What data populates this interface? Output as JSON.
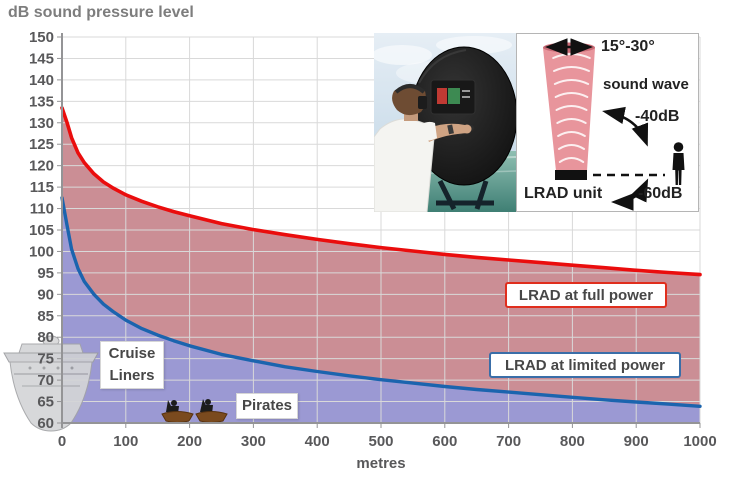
{
  "chart_data": {
    "type": "line",
    "title": "dB sound pressure level",
    "xlabel": "metres",
    "ylabel": "dB sound pressure level",
    "xlim": [
      0,
      1000
    ],
    "ylim": [
      60,
      150
    ],
    "grid": true,
    "legend_position": "inside-right",
    "xticks": [
      0,
      100,
      200,
      300,
      400,
      500,
      600,
      700,
      800,
      900,
      1000
    ],
    "yticks": [
      60,
      65,
      70,
      75,
      80,
      85,
      90,
      95,
      100,
      105,
      110,
      115,
      120,
      125,
      130,
      135,
      140,
      145,
      150
    ],
    "series": [
      {
        "name": "LRAD at full power",
        "color": "#ea0d0d",
        "fill": "#cb8e95",
        "points": [
          [
            0,
            133.5
          ],
          [
            8,
            130
          ],
          [
            15,
            126.5
          ],
          [
            25,
            123
          ],
          [
            35,
            120.7
          ],
          [
            50,
            118.1
          ],
          [
            65,
            116.2
          ],
          [
            80,
            114.8
          ],
          [
            100,
            113.2
          ],
          [
            125,
            111.7
          ],
          [
            150,
            110.4
          ],
          [
            175,
            109.3
          ],
          [
            200,
            108.3
          ],
          [
            250,
            106.5
          ],
          [
            300,
            105.1
          ],
          [
            350,
            103.9
          ],
          [
            400,
            102.8
          ],
          [
            450,
            101.8
          ],
          [
            500,
            100.9
          ],
          [
            550,
            100.1
          ],
          [
            600,
            99.3
          ],
          [
            650,
            98.6
          ],
          [
            700,
            98.0
          ],
          [
            750,
            97.4
          ],
          [
            800,
            96.8
          ],
          [
            850,
            96.2
          ],
          [
            900,
            95.6
          ],
          [
            950,
            95.1
          ],
          [
            1000,
            94.6
          ]
        ]
      },
      {
        "name": "LRAD at limited power",
        "color": "#1b64ae",
        "fill": "#9b99d3",
        "points": [
          [
            0,
            112.5
          ],
          [
            8,
            106
          ],
          [
            15,
            100.5
          ],
          [
            25,
            96
          ],
          [
            35,
            93
          ],
          [
            50,
            90
          ],
          [
            65,
            87.7
          ],
          [
            80,
            86
          ],
          [
            100,
            84
          ],
          [
            125,
            82
          ],
          [
            150,
            80.5
          ],
          [
            175,
            79.2
          ],
          [
            200,
            78
          ],
          [
            250,
            76
          ],
          [
            300,
            74.5
          ],
          [
            350,
            73.1
          ],
          [
            400,
            72
          ],
          [
            450,
            71
          ],
          [
            500,
            70.1
          ],
          [
            550,
            69.3
          ],
          [
            600,
            68.5
          ],
          [
            650,
            67.8
          ],
          [
            700,
            67.2
          ],
          [
            750,
            66.6
          ],
          [
            800,
            66
          ],
          [
            850,
            65.4
          ],
          [
            900,
            64.9
          ],
          [
            950,
            64.4
          ],
          [
            1000,
            63.9
          ]
        ]
      }
    ],
    "annotations": {
      "cruise_liners_line1": "Cruise",
      "cruise_liners_line2": "Liners",
      "pirates": "Pirates"
    }
  },
  "inset_diagram": {
    "beam_angle": "15°-30°",
    "sound_wave": "sound wave",
    "attenuation_side": "-40dB",
    "unit_label": "LRAD unit",
    "attenuation_behind": "-60dB",
    "beam_color": "#e8959c"
  },
  "colors": {
    "grid": "#d9d9d9",
    "axis": "#949496",
    "tick_text": "#58585a",
    "title_text": "#7d7d7d",
    "full_power_line": "#ea0d0d",
    "full_power_fill": "#cb8e95",
    "limited_power_line": "#1b64ae",
    "limited_power_fill": "#9b99d3"
  }
}
